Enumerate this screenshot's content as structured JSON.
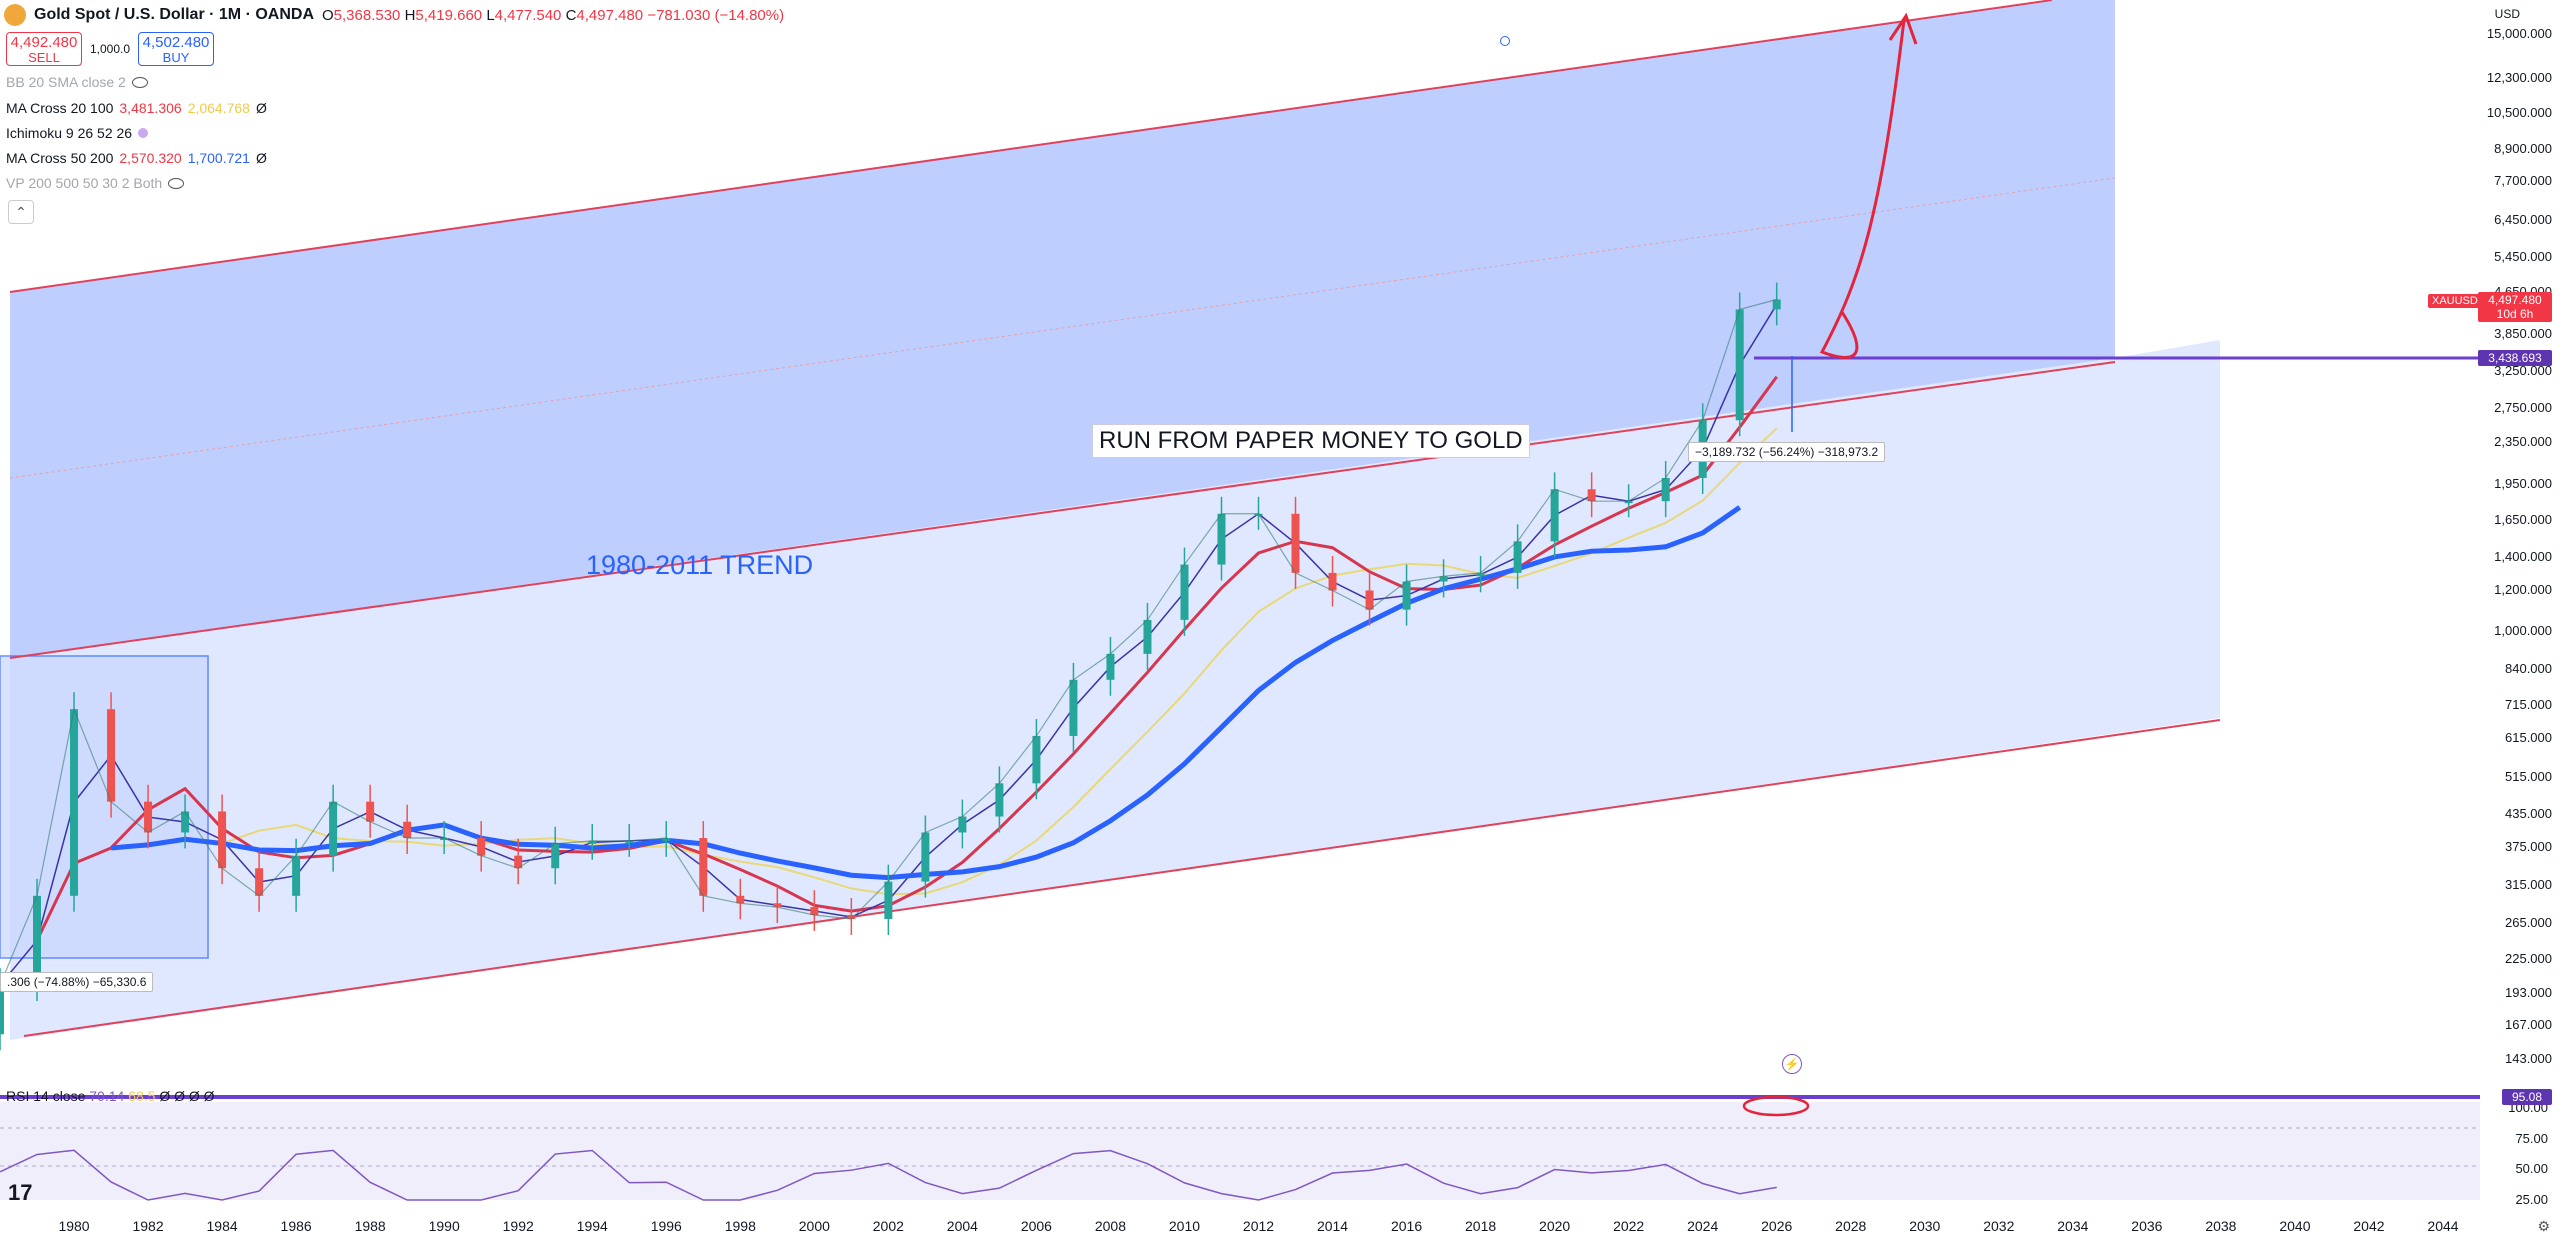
{
  "header": {
    "title": "Gold Spot / U.S. Dollar · 1M · OANDA",
    "ohlc": {
      "o_label": "O",
      "o": "5,368.530",
      "h_label": "H",
      "h": "5,419.660",
      "l_label": "L",
      "l": "4,477.540",
      "c_label": "C",
      "c": "4,497.480",
      "change": "−781.030 (−14.80%)"
    }
  },
  "trade": {
    "sell_price": "4,492.480",
    "sell_label": "SELL",
    "qty": "1,000.0",
    "buy_price": "4,502.480",
    "buy_label": "BUY"
  },
  "indicators": {
    "bb": "BB 20 SMA close 2",
    "ma1_label": "MA Cross 20 100",
    "ma1_v1": "3,481.306",
    "ma1_v2": "2,064.768",
    "ma1_tail": "Ø",
    "ichimoku": "Ichimoku 9 26 52 26",
    "ma2_label": "MA Cross 50 200",
    "ma2_v1": "2,570.320",
    "ma2_v2": "1,700.721",
    "ma2_tail": "Ø",
    "vp": "VP 200 500 50 30 2 Both"
  },
  "collapse_icon": "chevron-up-icon",
  "price_axis": {
    "currency": "USD",
    "labels": [
      "15,000.000",
      "12,300.000",
      "10,500.000",
      "8,900.000",
      "7,700.000",
      "6,450.000",
      "5,450.000",
      "4,650.000",
      "3,850.000",
      "3,250.000",
      "2,750.000",
      "2,350.000",
      "1,950.000",
      "1,650.000",
      "1,400.000",
      "1,200.000",
      "1,000.000",
      "840.000",
      "715.000",
      "615.000",
      "515.000",
      "435.000",
      "375.000",
      "315.000",
      "265.000",
      "225.000",
      "193.000",
      "167.000",
      "143.000"
    ],
    "last_tag": {
      "symbol": "XAUUSD",
      "price": "4,497.480",
      "countdown": "10d 6h"
    },
    "line_tag": "3,438.693"
  },
  "x_axis": {
    "labels": [
      "1980",
      "1982",
      "1984",
      "1986",
      "1988",
      "1990",
      "1992",
      "1994",
      "1996",
      "1998",
      "2000",
      "2002",
      "2004",
      "2006",
      "2008",
      "2010",
      "2012",
      "2014",
      "2016",
      "2018",
      "2020",
      "2022",
      "2024",
      "2026",
      "2028",
      "2030",
      "2032",
      "2034",
      "2036",
      "2038",
      "2040",
      "2042",
      "2044"
    ]
  },
  "annotations": {
    "run_text": "RUN FROM PAPER MONEY TO GOLD",
    "trend_text": "1980-2011 TREND",
    "measure_right": "−3,189.732 (−56.24%) −318,973.2",
    "measure_left": ".306 (−74.88%) −65,330.6"
  },
  "rsi": {
    "header": "RSI 14 close",
    "v1": "70.14",
    "v2": "68.5",
    "tail": "Ø Ø Ø Ø",
    "labels": [
      "100.00",
      "75.00",
      "50.00",
      "25.00"
    ],
    "tag": "95.08"
  },
  "colors": {
    "up": "#26a69a",
    "down": "#ef5350",
    "channel": "#e0425b",
    "ma_blue": "#2962ff",
    "ma_red": "#d8354f",
    "ma_yellow": "#e8d876",
    "ma_navy": "#3b32a8",
    "purple": "#6a3fd1",
    "band_fill": "#b3c6ff"
  },
  "chart_data": {
    "type": "line",
    "title": "Gold Spot / U.S. Dollar · 1M · OANDA",
    "scale": "log",
    "x": [
      1978,
      1979,
      1980,
      1981,
      1982,
      1983,
      1984,
      1985,
      1986,
      1987,
      1988,
      1989,
      1990,
      1991,
      1992,
      1993,
      1994,
      1995,
      1996,
      1997,
      1998,
      1999,
      2000,
      2001,
      2002,
      2003,
      2004,
      2005,
      2006,
      2007,
      2008,
      2009,
      2010,
      2011,
      2012,
      2013,
      2014,
      2015,
      2016,
      2017,
      2018,
      2019,
      2020,
      2021,
      2022,
      2023,
      2024,
      2025,
      2026
    ],
    "series": [
      {
        "name": "XAUUSD",
        "values": [
          200,
          300,
          700,
          460,
          400,
          440,
          340,
          300,
          360,
          460,
          420,
          390,
          390,
          360,
          340,
          380,
          385,
          385,
          390,
          300,
          290,
          285,
          275,
          270,
          320,
          400,
          430,
          500,
          620,
          800,
          900,
          1050,
          1350,
          1700,
          1700,
          1300,
          1200,
          1100,
          1250,
          1280,
          1300,
          1500,
          1900,
          1800,
          1800,
          2000,
          2600,
          4300,
          4497.48
        ]
      }
    ],
    "ylim": [
      130,
      16000
    ],
    "xlim": [
      1978,
      2045
    ]
  }
}
